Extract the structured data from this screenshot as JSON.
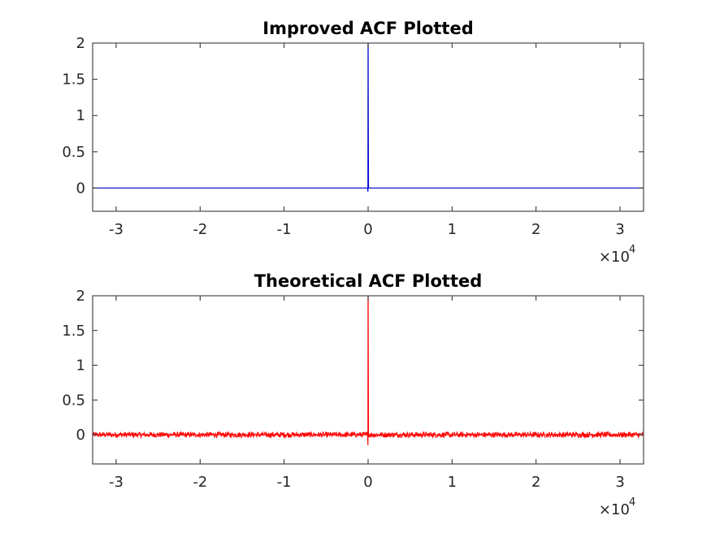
{
  "chart_data": [
    {
      "type": "line",
      "title": "Improved ACF Plotted",
      "xlabel": "",
      "ylabel": "",
      "x_multiplier": "10^4",
      "x_multiplier_base": "10",
      "x_multiplier_exp": "4",
      "xlim": [
        -3.28,
        3.28
      ],
      "ylim": [
        -0.32,
        2
      ],
      "xticks": [
        -3,
        -2,
        -1,
        0,
        1,
        2,
        3
      ],
      "xtick_labels": [
        "-3",
        "-2",
        "-1",
        "0",
        "1",
        "2",
        "3"
      ],
      "yticks": [
        0,
        0.5,
        1,
        1.5,
        2
      ],
      "ytick_labels": [
        "0",
        "0.5",
        "1",
        "1.5",
        "2"
      ],
      "grid": false,
      "color": "#0000cc",
      "noise_amplitude": 0.0,
      "series": [
        {
          "x": [
            -3.28,
            -0.02,
            -0.005,
            -0.002,
            0,
            0.002,
            0.005,
            0.02,
            3.28
          ],
          "y": [
            0,
            0,
            0,
            -0.05,
            2.3,
            1.05,
            0,
            0,
            0
          ]
        }
      ]
    },
    {
      "type": "line",
      "title": "Theoretical ACF Plotted",
      "xlabel": "",
      "ylabel": "",
      "x_multiplier": "10^4",
      "x_multiplier_base": "10",
      "x_multiplier_exp": "4",
      "xlim": [
        -3.28,
        3.28
      ],
      "ylim": [
        -0.42,
        2
      ],
      "xticks": [
        -3,
        -2,
        -1,
        0,
        1,
        2,
        3
      ],
      "xtick_labels": [
        "-3",
        "-2",
        "-1",
        "0",
        "1",
        "2",
        "3"
      ],
      "yticks": [
        0,
        0.5,
        1,
        1.5,
        2
      ],
      "ytick_labels": [
        "0",
        "0.5",
        "1",
        "1.5",
        "2"
      ],
      "grid": false,
      "color": "#ff0000",
      "noise_amplitude": 0.04,
      "series": [
        {
          "x": [
            -3.28,
            -0.02,
            -0.005,
            -0.002,
            0,
            0.002,
            0.005,
            0.02,
            3.28
          ],
          "y": [
            0,
            0,
            0,
            -0.15,
            2.3,
            1.1,
            0,
            0,
            0
          ]
        }
      ]
    }
  ]
}
